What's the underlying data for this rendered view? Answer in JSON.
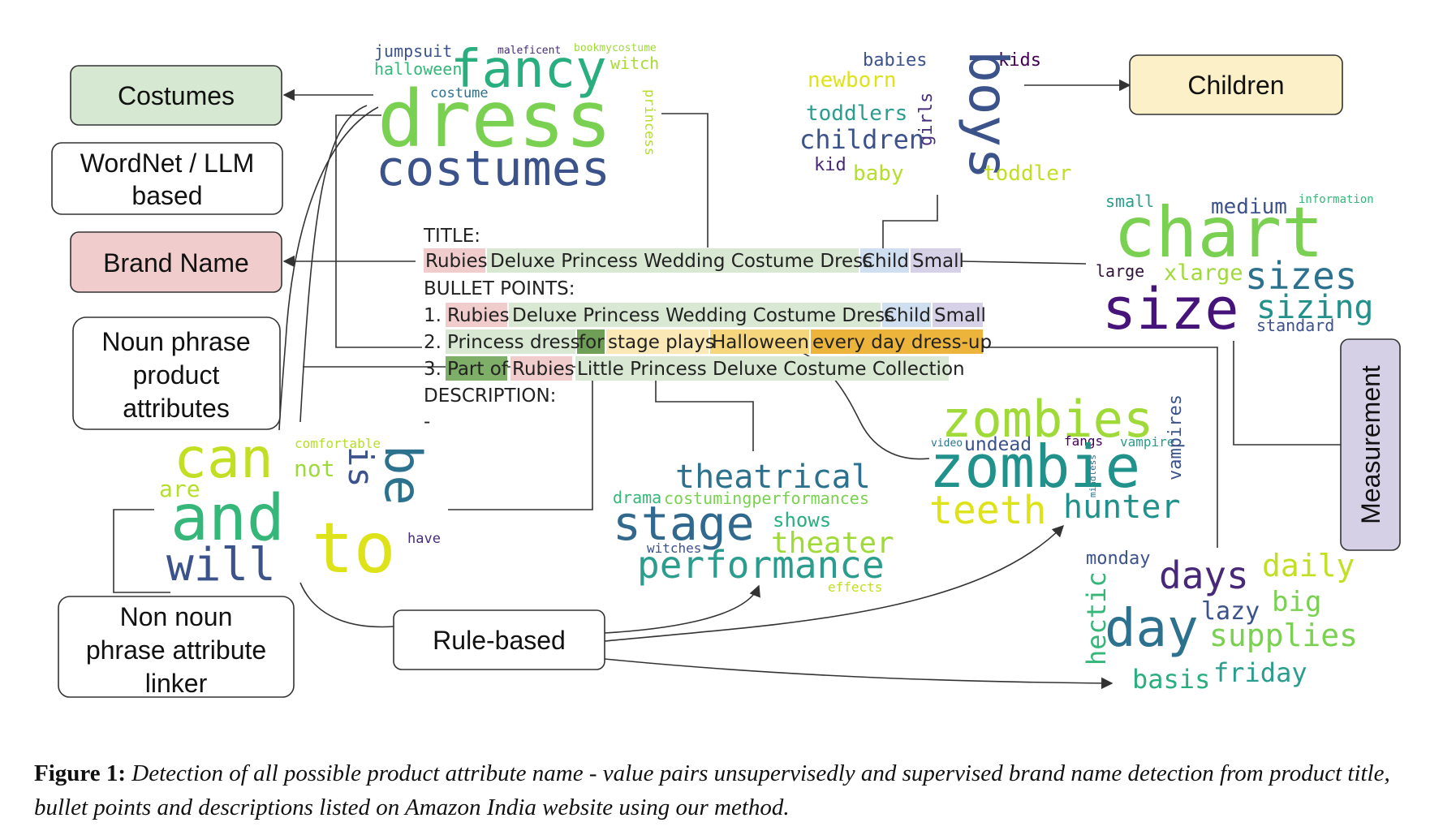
{
  "boxes": {
    "costumes": "Costumes",
    "wordnet": [
      "WordNet / LLM",
      "based"
    ],
    "brand": "Brand Name",
    "noun": [
      "Noun phrase",
      "product",
      "attributes"
    ],
    "nonnoun": [
      "Non noun",
      "phrase attribute",
      "linker"
    ],
    "rule": "Rule-based",
    "children": "Children",
    "measurement": "Measurement"
  },
  "listing": {
    "title_header": "TITLE:",
    "title": [
      "Rubies",
      "Deluxe Princess Wedding Costume Dress",
      "Child",
      "Small"
    ],
    "bullets_header": "BULLET POINTS:",
    "bullet1": [
      "1.",
      "Rubies",
      "Deluxe Princess Wedding Costume Dress",
      "Child",
      "Small"
    ],
    "bullet2": [
      "2.",
      "Princess dress",
      "for",
      "stage plays",
      "Halloween",
      "every day dress-up"
    ],
    "bullet3": [
      "3.",
      "Part of",
      "Rubies",
      "Little Princess Deluxe Costume Collection"
    ],
    "desc_header": "DESCRIPTION:",
    "desc": "-"
  },
  "highlight_colors": {
    "brand": "#f1cccc",
    "product": "#d8e8d2",
    "child": "#cfdff0",
    "size": "#d6d1e6",
    "for": "#6f9f57",
    "stage": "#fae8b6",
    "halloween": "#f6d67c",
    "everyday": "#ecb43a",
    "partof": "#7fae68"
  },
  "box_colors": {
    "costumes": "#d7e8d2",
    "brand": "#f0cdcc",
    "children": "#fbf0c7",
    "measurement": "#d5d0e6",
    "plain": "#ffffff"
  },
  "clouds": {
    "costume": [
      "jumpsuit",
      "maleficent",
      "bookmycostume",
      "halloween",
      "fancy",
      "witch",
      "costume",
      "dress",
      "princess",
      "costumes"
    ],
    "children": [
      "babies",
      "kids",
      "newborn",
      "boys",
      "girls",
      "toddlers",
      "children",
      "kid",
      "baby",
      "toddler"
    ],
    "size": [
      "small",
      "medium",
      "information",
      "chart",
      "large",
      "xlarge",
      "sizes",
      "size",
      "sizing",
      "standard"
    ],
    "linker": [
      "comfortable",
      "can",
      "not",
      "is",
      "be",
      "are",
      "and",
      "to",
      "have",
      "will"
    ],
    "theater": [
      "theatrical",
      "drama",
      "costumingperformances",
      "stage",
      "shows",
      "theater",
      "witches",
      "performance",
      "effects"
    ],
    "zombie": [
      "zombies",
      "video",
      "undead",
      "fangs",
      "vampire",
      "vampires",
      "mindless",
      "zombie",
      "teeth",
      "hunter"
    ],
    "days": [
      "monday",
      "days",
      "daily",
      "big",
      "lazy",
      "hectic",
      "day",
      "supplies",
      "basis",
      "friday"
    ]
  },
  "caption": {
    "label": "Figure 1:",
    "text": "Detection of all possible product attribute name - value pairs unsupervisedly and supervised brand name detection from product title, bullet points and descriptions listed on Amazon India website using our method."
  }
}
